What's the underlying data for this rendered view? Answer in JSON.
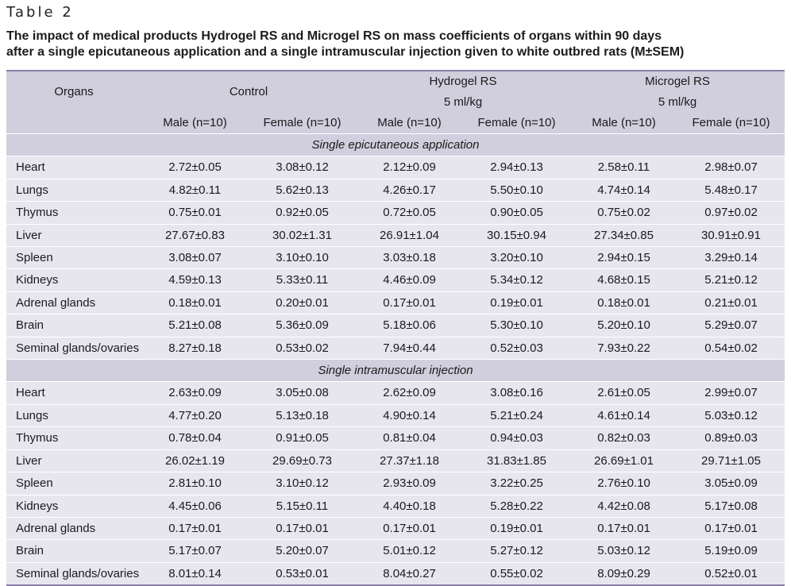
{
  "table_label": "Table 2",
  "caption_line1": "The impact of medical products Hydrogel RS and Microgel RS on mass coefficients of organs within 90 days",
  "caption_line2": "after a single epicutaneous application and a single intramuscular injection given to white outbred rats (M±SEM)",
  "header": {
    "organs": "Organs",
    "control": "Control",
    "hydrogel": "Hydrogel RS",
    "microgel": "Microgel RS",
    "dose_hydrogel": "5 ml/kg",
    "dose_microgel": "5 ml/kg",
    "male": "Male (n=10)",
    "female": "Female (n=10)"
  },
  "sections": [
    {
      "title": "Single epicutaneous application",
      "rows": [
        {
          "organ": "Heart",
          "values": [
            "2.72±0.05",
            "3.08±0.12",
            "2.12±0.09",
            "2.94±0.13",
            "2.58±0.11",
            "2.98±0.07"
          ]
        },
        {
          "organ": "Lungs",
          "values": [
            "4.82±0.11",
            "5.62±0.13",
            "4.26±0.17",
            "5.50±0.10",
            "4.74±0.14",
            "5.48±0.17"
          ]
        },
        {
          "organ": "Thymus",
          "values": [
            "0.75±0.01",
            "0.92±0.05",
            "0.72±0.05",
            "0.90±0.05",
            "0.75±0.02",
            "0.97±0.02"
          ]
        },
        {
          "organ": "Liver",
          "values": [
            "27.67±0.83",
            "30.02±1.31",
            "26.91±1.04",
            "30.15±0.94",
            "27.34±0.85",
            "30.91±0.91"
          ]
        },
        {
          "organ": "Spleen",
          "values": [
            "3.08±0.07",
            "3.10±0.10",
            "3.03±0.18",
            "3.20±0.10",
            "2.94±0.15",
            "3.29±0.14"
          ]
        },
        {
          "organ": "Kidneys",
          "values": [
            "4.59±0.13",
            "5.33±0.11",
            "4.46±0.09",
            "5.34±0.12",
            "4.68±0.15",
            "5.21±0.12"
          ]
        },
        {
          "organ": "Adrenal glands",
          "values": [
            "0.18±0.01",
            "0.20±0.01",
            "0.17±0.01",
            "0.19±0.01",
            "0.18±0.01",
            "0.21±0.01"
          ]
        },
        {
          "organ": "Brain",
          "values": [
            "5.21±0.08",
            "5.36±0.09",
            "5.18±0.06",
            "5.30±0.10",
            "5.20±0.10",
            "5.29±0.07"
          ]
        },
        {
          "organ": "Seminal glands/ovaries",
          "values": [
            "8.27±0.18",
            "0.53±0.02",
            "7.94±0.44",
            "0.52±0.03",
            "7.93±0.22",
            "0.54±0.02"
          ]
        }
      ]
    },
    {
      "title": "Single intramuscular injection",
      "rows": [
        {
          "organ": "Heart",
          "values": [
            "2.63±0.09",
            "3.05±0.08",
            "2.62±0.09",
            "3.08±0.16",
            "2.61±0.05",
            "2.99±0.07"
          ]
        },
        {
          "organ": "Lungs",
          "values": [
            "4.77±0.20",
            "5.13±0.18",
            "4.90±0.14",
            "5.21±0.24",
            "4.61±0.14",
            "5.03±0.12"
          ]
        },
        {
          "organ": "Thymus",
          "values": [
            "0.78±0.04",
            "0.91±0.05",
            "0.81±0.04",
            "0.94±0.03",
            "0.82±0.03",
            "0.89±0.03"
          ]
        },
        {
          "organ": "Liver",
          "values": [
            "26.02±1.19",
            "29.69±0.73",
            "27.37±1.18",
            "31.83±1.85",
            "26.69±1.01",
            "29.71±1.05"
          ]
        },
        {
          "organ": "Spleen",
          "values": [
            "2.81±0.10",
            "3.10±0.12",
            "2.93±0.09",
            "3.22±0.25",
            "2.76±0.10",
            "3.05±0.09"
          ]
        },
        {
          "organ": "Kidneys",
          "values": [
            "4.45±0.06",
            "5.15±0.11",
            "4.40±0.18",
            "5.28±0.22",
            "4.42±0.08",
            "5.17±0.08"
          ]
        },
        {
          "organ": "Adrenal glands",
          "values": [
            "0.17±0.01",
            "0.17±0.01",
            "0.17±0.01",
            "0.19±0.01",
            "0.17±0.01",
            "0.17±0.01"
          ]
        },
        {
          "organ": "Brain",
          "values": [
            "5.17±0.07",
            "5.20±0.07",
            "5.01±0.12",
            "5.27±0.12",
            "5.03±0.12",
            "5.19±0.09"
          ]
        },
        {
          "organ": "Seminal glands/ovaries",
          "values": [
            "8.01±0.14",
            "0.53±0.01",
            "8.04±0.27",
            "0.55±0.02",
            "8.09±0.29",
            "0.52±0.01"
          ]
        }
      ]
    }
  ],
  "colors": {
    "header_bg": "#d1cedd",
    "row_bg": "#e7e6ef",
    "rule": "#8a7fa6"
  }
}
